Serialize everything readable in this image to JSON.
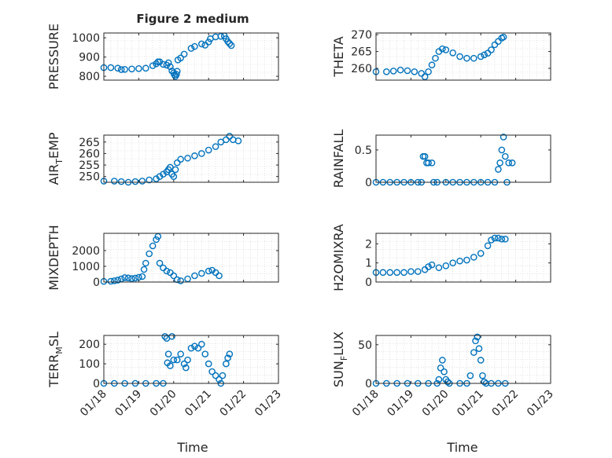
{
  "figure": {
    "title": "Figure 2 medium",
    "marker_color": "#0072BD",
    "axis_color": "#262626",
    "grid_color": "#d0d0d0"
  },
  "chart_data": [
    {
      "type": "scatter",
      "ylabel": "PRESSURE",
      "ylim": [
        780,
        1025
      ],
      "yticks": [
        800,
        900,
        1000
      ],
      "xlim": [
        0,
        5
      ],
      "grid": true,
      "points": [
        [
          0,
          845
        ],
        [
          0.2,
          845
        ],
        [
          0.4,
          842
        ],
        [
          0.5,
          835
        ],
        [
          0.6,
          836
        ],
        [
          0.8,
          838
        ],
        [
          1.0,
          840
        ],
        [
          1.2,
          842
        ],
        [
          1.4,
          855
        ],
        [
          1.5,
          865
        ],
        [
          1.55,
          875
        ],
        [
          1.6,
          875
        ],
        [
          1.7,
          862
        ],
        [
          1.8,
          858
        ],
        [
          1.85,
          870
        ],
        [
          1.9,
          850
        ],
        [
          1.95,
          828
        ],
        [
          2.0,
          818
        ],
        [
          2.02,
          808
        ],
        [
          2.05,
          800
        ],
        [
          2.08,
          810
        ],
        [
          2.1,
          826
        ],
        [
          2.12,
          885
        ],
        [
          2.2,
          895
        ],
        [
          2.3,
          915
        ],
        [
          2.5,
          945
        ],
        [
          2.6,
          955
        ],
        [
          2.8,
          968
        ],
        [
          2.9,
          962
        ],
        [
          3.0,
          978
        ],
        [
          3.05,
          995
        ],
        [
          3.2,
          1005
        ],
        [
          3.35,
          1008
        ],
        [
          3.45,
          1010
        ],
        [
          3.5,
          995
        ],
        [
          3.55,
          980
        ],
        [
          3.6,
          970
        ],
        [
          3.65,
          960
        ]
      ]
    },
    {
      "type": "scatter",
      "ylabel": "THETA",
      "ylim": [
        256.5,
        270.5
      ],
      "yticks": [
        260,
        265,
        270
      ],
      "xlim": [
        0,
        5
      ],
      "grid": true,
      "points": [
        [
          0,
          259
        ],
        [
          0.3,
          259
        ],
        [
          0.5,
          259.2
        ],
        [
          0.7,
          259.5
        ],
        [
          0.9,
          259.3
        ],
        [
          1.1,
          259
        ],
        [
          1.3,
          258.5
        ],
        [
          1.4,
          257.5
        ],
        [
          1.5,
          259
        ],
        [
          1.6,
          261
        ],
        [
          1.7,
          263
        ],
        [
          1.8,
          265
        ],
        [
          1.9,
          265.8
        ],
        [
          2.0,
          265.5
        ],
        [
          2.2,
          264.6
        ],
        [
          2.4,
          263.5
        ],
        [
          2.6,
          263
        ],
        [
          2.8,
          263
        ],
        [
          3.0,
          263.5
        ],
        [
          3.1,
          264
        ],
        [
          3.2,
          264.5
        ],
        [
          3.3,
          265.5
        ],
        [
          3.4,
          267
        ],
        [
          3.5,
          268
        ],
        [
          3.6,
          269
        ],
        [
          3.65,
          269.3
        ]
      ]
    },
    {
      "type": "scatter",
      "ylabel": "AIR_TEMP",
      "ylim": [
        247.5,
        268
      ],
      "yticks": [
        250,
        255,
        260,
        265
      ],
      "xlim": [
        0,
        5
      ],
      "grid": true,
      "points": [
        [
          0,
          248
        ],
        [
          0.3,
          248
        ],
        [
          0.5,
          247.8
        ],
        [
          0.7,
          247.5
        ],
        [
          0.9,
          247.8
        ],
        [
          1.1,
          248
        ],
        [
          1.3,
          248.5
        ],
        [
          1.5,
          249
        ],
        [
          1.6,
          250
        ],
        [
          1.7,
          251
        ],
        [
          1.8,
          252
        ],
        [
          1.85,
          253
        ],
        [
          1.9,
          254
        ],
        [
          1.95,
          251
        ],
        [
          2.0,
          250
        ],
        [
          2.05,
          253
        ],
        [
          2.1,
          256
        ],
        [
          2.2,
          257.5
        ],
        [
          2.4,
          258
        ],
        [
          2.6,
          259
        ],
        [
          2.8,
          260
        ],
        [
          3.0,
          261.5
        ],
        [
          3.2,
          263
        ],
        [
          3.35,
          265
        ],
        [
          3.5,
          266
        ],
        [
          3.6,
          267.5
        ],
        [
          3.7,
          266
        ],
        [
          3.85,
          265.5
        ]
      ]
    },
    {
      "type": "scatter",
      "ylabel": "RAINFALL",
      "ylim": [
        0,
        0.73
      ],
      "yticks": [
        0,
        0.5
      ],
      "xlim": [
        0,
        5
      ],
      "grid": false,
      "points": [
        [
          0,
          0
        ],
        [
          0.2,
          0
        ],
        [
          0.4,
          0
        ],
        [
          0.6,
          0
        ],
        [
          0.8,
          0
        ],
        [
          1.0,
          0
        ],
        [
          1.2,
          0
        ],
        [
          1.3,
          0
        ],
        [
          1.35,
          0.4
        ],
        [
          1.4,
          0.4
        ],
        [
          1.45,
          0.3
        ],
        [
          1.5,
          0.3
        ],
        [
          1.6,
          0.3
        ],
        [
          1.65,
          0
        ],
        [
          1.75,
          0
        ],
        [
          2.0,
          0
        ],
        [
          2.2,
          0
        ],
        [
          2.4,
          0
        ],
        [
          2.6,
          0
        ],
        [
          2.8,
          0
        ],
        [
          3.0,
          0
        ],
        [
          3.2,
          0
        ],
        [
          3.4,
          0
        ],
        [
          3.5,
          0.2
        ],
        [
          3.55,
          0.3
        ],
        [
          3.6,
          0.5
        ],
        [
          3.65,
          0.7
        ],
        [
          3.7,
          0.4
        ],
        [
          3.75,
          0
        ],
        [
          3.8,
          0.3
        ],
        [
          3.9,
          0.3
        ]
      ]
    },
    {
      "type": "scatter",
      "ylabel": "MIXDEPTH",
      "ylim": [
        0,
        3100
      ],
      "yticks": [
        0,
        1000,
        2000
      ],
      "xlim": [
        0,
        5
      ],
      "grid": true,
      "points": [
        [
          0,
          40
        ],
        [
          0.2,
          50
        ],
        [
          0.3,
          80
        ],
        [
          0.4,
          120
        ],
        [
          0.5,
          200
        ],
        [
          0.6,
          280
        ],
        [
          0.7,
          260
        ],
        [
          0.8,
          220
        ],
        [
          0.9,
          250
        ],
        [
          1.0,
          300
        ],
        [
          1.1,
          350
        ],
        [
          1.15,
          800
        ],
        [
          1.2,
          1200
        ],
        [
          1.3,
          1800
        ],
        [
          1.4,
          2300
        ],
        [
          1.5,
          2700
        ],
        [
          1.55,
          2900
        ],
        [
          1.6,
          1200
        ],
        [
          1.7,
          900
        ],
        [
          1.8,
          700
        ],
        [
          1.9,
          600
        ],
        [
          2.0,
          400
        ],
        [
          2.1,
          150
        ],
        [
          2.2,
          80
        ],
        [
          2.4,
          200
        ],
        [
          2.6,
          400
        ],
        [
          2.8,
          550
        ],
        [
          3.0,
          700
        ],
        [
          3.1,
          750
        ],
        [
          3.2,
          600
        ],
        [
          3.3,
          400
        ]
      ]
    },
    {
      "type": "scatter",
      "ylabel": "H2OMIXRA",
      "ylim": [
        0,
        2.55
      ],
      "yticks": [
        0,
        1,
        2
      ],
      "xlim": [
        0,
        5
      ],
      "grid": true,
      "points": [
        [
          0,
          0.5
        ],
        [
          0.2,
          0.5
        ],
        [
          0.4,
          0.5
        ],
        [
          0.6,
          0.5
        ],
        [
          0.8,
          0.5
        ],
        [
          1.0,
          0.55
        ],
        [
          1.2,
          0.55
        ],
        [
          1.4,
          0.65
        ],
        [
          1.5,
          0.8
        ],
        [
          1.6,
          0.9
        ],
        [
          1.8,
          0.75
        ],
        [
          2.0,
          0.85
        ],
        [
          2.2,
          1.0
        ],
        [
          2.4,
          1.1
        ],
        [
          2.6,
          1.15
        ],
        [
          2.8,
          1.3
        ],
        [
          3.0,
          1.5
        ],
        [
          3.2,
          1.9
        ],
        [
          3.3,
          2.2
        ],
        [
          3.4,
          2.3
        ],
        [
          3.5,
          2.3
        ],
        [
          3.6,
          2.25
        ],
        [
          3.7,
          2.25
        ]
      ]
    },
    {
      "type": "scatter",
      "ylabel": "TERR_MSL",
      "ylim": [
        0,
        245
      ],
      "yticks": [
        0,
        100,
        200
      ],
      "xlim": [
        0,
        5
      ],
      "grid": true,
      "points": [
        [
          0,
          0
        ],
        [
          0.3,
          0
        ],
        [
          0.6,
          0
        ],
        [
          0.9,
          0
        ],
        [
          1.2,
          0
        ],
        [
          1.5,
          0
        ],
        [
          1.7,
          0
        ],
        [
          1.75,
          240
        ],
        [
          1.8,
          230
        ],
        [
          1.82,
          105
        ],
        [
          1.85,
          150
        ],
        [
          1.9,
          90
        ],
        [
          1.95,
          240
        ],
        [
          2.0,
          120
        ],
        [
          2.1,
          120
        ],
        [
          2.2,
          150
        ],
        [
          2.3,
          100
        ],
        [
          2.35,
          80
        ],
        [
          2.4,
          120
        ],
        [
          2.5,
          180
        ],
        [
          2.6,
          190
        ],
        [
          2.7,
          180
        ],
        [
          2.8,
          200
        ],
        [
          2.9,
          150
        ],
        [
          3.0,
          100
        ],
        [
          3.1,
          60
        ],
        [
          3.2,
          40
        ],
        [
          3.3,
          20
        ],
        [
          3.35,
          0
        ],
        [
          3.4,
          40
        ],
        [
          3.5,
          100
        ],
        [
          3.55,
          130
        ],
        [
          3.6,
          150
        ]
      ]
    },
    {
      "type": "scatter",
      "ylabel": "SUN_FLUX",
      "ylim": [
        0,
        62
      ],
      "yticks": [
        0,
        50
      ],
      "xlim": [
        0,
        5
      ],
      "grid": true,
      "points": [
        [
          0,
          0
        ],
        [
          0.3,
          0
        ],
        [
          0.6,
          0
        ],
        [
          0.9,
          0
        ],
        [
          1.2,
          0
        ],
        [
          1.5,
          0
        ],
        [
          1.75,
          0
        ],
        [
          1.8,
          5
        ],
        [
          1.85,
          20
        ],
        [
          1.9,
          30
        ],
        [
          1.95,
          15
        ],
        [
          2.0,
          5
        ],
        [
          2.05,
          2
        ],
        [
          2.1,
          0
        ],
        [
          2.4,
          0
        ],
        [
          2.6,
          0
        ],
        [
          2.7,
          10
        ],
        [
          2.8,
          40
        ],
        [
          2.85,
          55
        ],
        [
          2.9,
          60
        ],
        [
          2.95,
          45
        ],
        [
          3.0,
          30
        ],
        [
          3.05,
          10
        ],
        [
          3.1,
          2
        ],
        [
          3.15,
          0
        ],
        [
          3.3,
          0
        ],
        [
          3.5,
          0
        ],
        [
          3.7,
          0
        ]
      ]
    }
  ],
  "x_ticks": [
    "01/18",
    "01/19",
    "01/20",
    "01/21",
    "01/22",
    "01/23"
  ],
  "xlabel": "Time"
}
